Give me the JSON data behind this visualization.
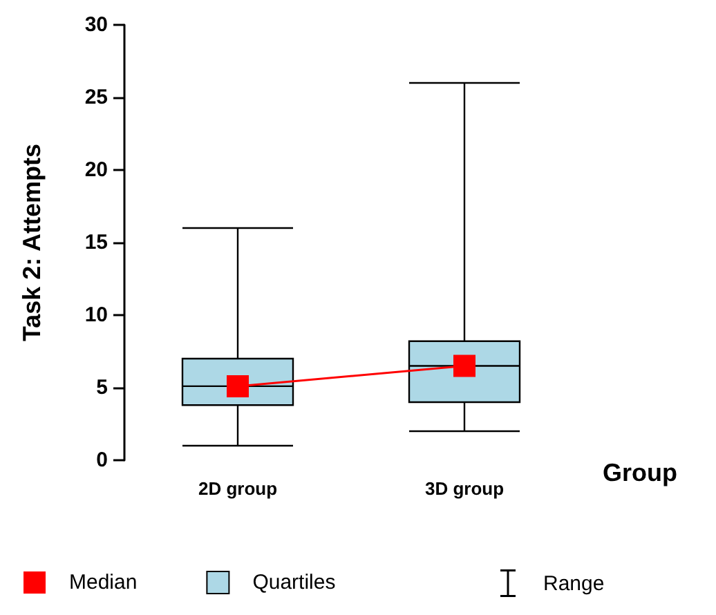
{
  "chart_data": {
    "type": "box",
    "ylabel": "Task 2: Attempts",
    "xlabel": "Group",
    "categories": [
      "2D group",
      "3D group"
    ],
    "series": [
      {
        "name": "Quartiles",
        "color": "#add8e6",
        "boxes": [
          {
            "low": 1,
            "q1": 3.8,
            "median": 5.1,
            "q3": 7,
            "high": 16
          },
          {
            "low": 2,
            "q1": 4,
            "median": 6.5,
            "q3": 8.2,
            "high": 26
          }
        ]
      },
      {
        "type": "line",
        "name": "Median",
        "color": "#ff0000",
        "x": [
          "2D group",
          "3D group"
        ],
        "values": [
          5.1,
          6.5
        ],
        "marker": "square"
      }
    ],
    "annotations": [
      "Range"
    ],
    "ylim": [
      0,
      30
    ],
    "yticks": [
      0,
      5,
      10,
      15,
      20,
      25,
      30
    ],
    "grid": false,
    "legend": "bottom"
  }
}
